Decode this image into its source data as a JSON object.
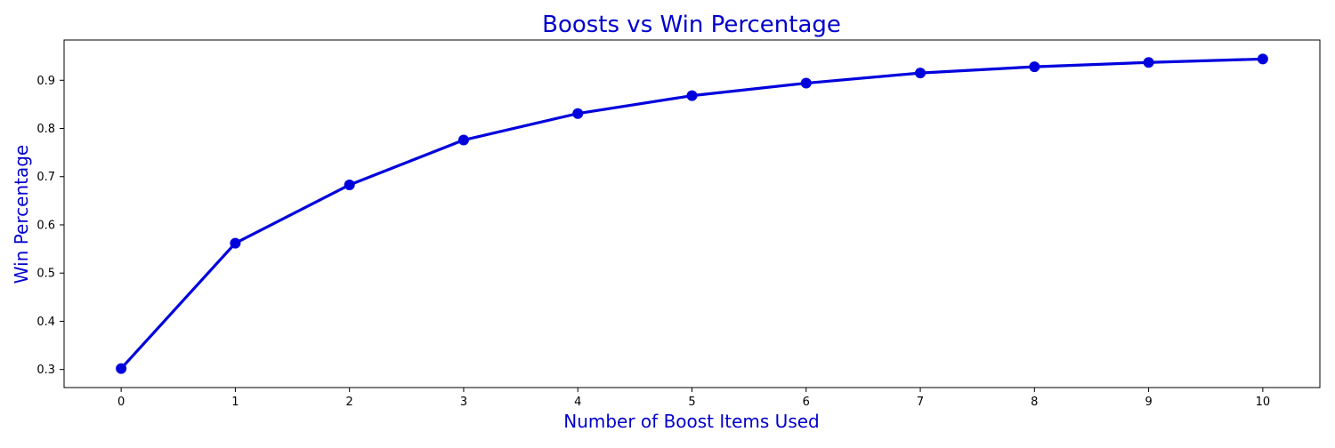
{
  "chart_data": {
    "type": "line",
    "title": "Boosts vs Win Percentage",
    "xlabel": "Number of Boost Items Used",
    "ylabel": "Win Percentage",
    "x": [
      0,
      1,
      2,
      3,
      4,
      5,
      6,
      7,
      8,
      9,
      10
    ],
    "series": [
      {
        "values": [
          0.302,
          0.562,
          0.683,
          0.776,
          0.831,
          0.868,
          0.894,
          0.915,
          0.928,
          0.937,
          0.944
        ],
        "color": "#0000dd",
        "marker": "circle"
      }
    ],
    "xlim": [
      -0.5,
      10.5
    ],
    "ylim": [
      0.2625,
      0.9835
    ],
    "xticks": [
      0,
      1,
      2,
      3,
      4,
      5,
      6,
      7,
      8,
      9,
      10
    ],
    "yticks": [
      0.3,
      0.4,
      0.5,
      0.6,
      0.7,
      0.8,
      0.9
    ],
    "grid": false,
    "text_color": "#0000cc"
  }
}
